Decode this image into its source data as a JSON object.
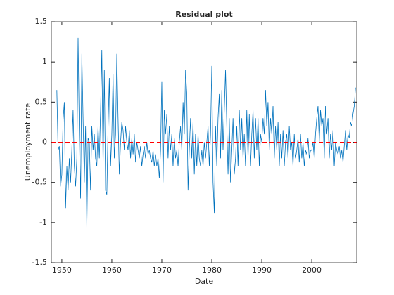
{
  "chart_data": {
    "type": "line",
    "title": "Residual plot",
    "x_label": "Date",
    "y_label": "Unemployment rate",
    "color": "#0072bd",
    "reference_line": {
      "value": 0,
      "color": "#ff0000",
      "style": "dashed"
    },
    "xlim": [
      1947.9,
      2009.0
    ],
    "xticks": [
      1950,
      1960,
      1970,
      1980,
      1990,
      2000
    ],
    "ylim": [
      -1.5,
      1.5
    ],
    "yticks": [
      -1.5,
      -1,
      -0.5,
      0,
      0.5,
      1,
      1.5
    ],
    "x": [
      1949,
      1949.25,
      1949.5,
      1949.75,
      1950,
      1950.25,
      1950.5,
      1950.75,
      1951,
      1951.25,
      1951.5,
      1951.75,
      1952,
      1952.25,
      1952.5,
      1952.75,
      1953,
      1953.25,
      1953.5,
      1953.75,
      1954,
      1954.25,
      1954.5,
      1954.75,
      1955,
      1955.25,
      1955.5,
      1955.75,
      1956,
      1956.25,
      1956.5,
      1956.75,
      1957,
      1957.25,
      1957.5,
      1957.75,
      1958,
      1958.25,
      1958.5,
      1958.75,
      1959,
      1959.25,
      1959.5,
      1959.75,
      1960,
      1960.25,
      1960.5,
      1960.75,
      1961,
      1961.25,
      1961.5,
      1961.75,
      1962,
      1962.25,
      1962.5,
      1962.75,
      1963,
      1963.25,
      1963.5,
      1963.75,
      1964,
      1964.25,
      1964.5,
      1964.75,
      1965,
      1965.25,
      1965.5,
      1965.75,
      1966,
      1966.25,
      1966.5,
      1966.75,
      1967,
      1967.25,
      1967.5,
      1967.75,
      1968,
      1968.25,
      1968.5,
      1968.75,
      1969,
      1969.25,
      1969.5,
      1969.75,
      1970,
      1970.25,
      1970.5,
      1970.75,
      1971,
      1971.25,
      1971.5,
      1971.75,
      1972,
      1972.25,
      1972.5,
      1972.75,
      1973,
      1973.25,
      1973.5,
      1973.75,
      1974,
      1974.25,
      1974.5,
      1974.75,
      1975,
      1975.25,
      1975.5,
      1975.75,
      1976,
      1976.25,
      1976.5,
      1976.75,
      1977,
      1977.25,
      1977.5,
      1977.75,
      1978,
      1978.25,
      1978.5,
      1978.75,
      1979,
      1979.25,
      1979.5,
      1979.75,
      1980,
      1980.25,
      1980.5,
      1980.75,
      1981,
      1981.25,
      1981.5,
      1981.75,
      1982,
      1982.25,
      1982.5,
      1982.75,
      1983,
      1983.25,
      1983.5,
      1983.75,
      1984,
      1984.25,
      1984.5,
      1984.75,
      1985,
      1985.25,
      1985.5,
      1985.75,
      1986,
      1986.25,
      1986.5,
      1986.75,
      1987,
      1987.25,
      1987.5,
      1987.75,
      1988,
      1988.25,
      1988.5,
      1988.75,
      1989,
      1989.25,
      1989.5,
      1989.75,
      1990,
      1990.25,
      1990.5,
      1990.75,
      1991,
      1991.25,
      1991.5,
      1991.75,
      1992,
      1992.25,
      1992.5,
      1992.75,
      1993,
      1993.25,
      1993.5,
      1993.75,
      1994,
      1994.25,
      1994.5,
      1994.75,
      1995,
      1995.25,
      1995.5,
      1995.75,
      1996,
      1996.25,
      1996.5,
      1996.75,
      1997,
      1997.25,
      1997.5,
      1997.75,
      1998,
      1998.25,
      1998.5,
      1998.75,
      1999,
      1999.25,
      1999.5,
      1999.75,
      2000,
      2000.25,
      2000.5,
      2000.75,
      2001,
      2001.25,
      2001.5,
      2001.75,
      2002,
      2002.25,
      2002.5,
      2002.75,
      2003,
      2003.25,
      2003.5,
      2003.75,
      2004,
      2004.25,
      2004.5,
      2004.75,
      2005,
      2005.25,
      2005.5,
      2005.75,
      2006,
      2006.25,
      2006.5,
      2006.75,
      2007,
      2007.25,
      2007.5,
      2007.75,
      2008,
      2008.25,
      2008.5,
      2008.75
    ],
    "values": [
      0.65,
      -0.1,
      -0.05,
      -0.55,
      -0.4,
      0.28,
      0.5,
      -0.82,
      -0.3,
      -0.6,
      -0.2,
      -0.5,
      -0.1,
      0.4,
      -0.3,
      -0.55,
      -0.2,
      1.3,
      0.1,
      -0.7,
      1.1,
      0.3,
      -0.5,
      0.2,
      -1.08,
      0.05,
      0,
      -0.6,
      0.2,
      -0.1,
      0.1,
      -0.2,
      -0.3,
      0.2,
      -0.2,
      0.4,
      1.15,
      -0.3,
      0.9,
      -0.6,
      -0.65,
      0.2,
      0.8,
      -0.3,
      0.1,
      0.85,
      -0.2,
      0.1,
      1.1,
      0.3,
      -0.4,
      0,
      0.25,
      0.15,
      -0.1,
      0.2,
      0,
      -0.1,
      0.15,
      -0.2,
      0.05,
      -0.15,
      0.1,
      -0.25,
      0,
      -0.1,
      -0.2,
      -0.05,
      -0.3,
      -0.15,
      -0.05,
      -0.2,
      0,
      -0.15,
      -0.1,
      -0.2,
      -0.25,
      -0.1,
      -0.3,
      -0.15,
      -0.3,
      -0.2,
      -0.45,
      -0.1,
      0.75,
      -0.5,
      0.4,
      0.1,
      0.35,
      -0.2,
      0.2,
      -0.1,
      0.1,
      -0.3,
      0.05,
      -0.2,
      -0.1,
      -0.3,
      0,
      0.2,
      -0.1,
      0.5,
      0.1,
      0.9,
      0.6,
      -0.6,
      -0.1,
      0.3,
      -0.2,
      0.25,
      -0.4,
      0.1,
      -0.3,
      0.1,
      -0.2,
      -0.3,
      -0.1,
      -0.3,
      0,
      -0.2,
      0,
      0.2,
      -0.3,
      0.1,
      0.95,
      -0.5,
      -0.88,
      0.2,
      -0.3,
      0.3,
      0.6,
      -0.2,
      0.65,
      -0.1,
      0.4,
      0.9,
      0.2,
      -0.4,
      0.3,
      -0.5,
      -0.1,
      0.3,
      -0.4,
      -0.2,
      0.2,
      -0.3,
      0.4,
      -0.1,
      0.3,
      -0.2,
      0.1,
      -0.3,
      0.4,
      -0.2,
      0.35,
      -0.3,
      0.1,
      0.4,
      -0.2,
      0.3,
      -0.1,
      0.3,
      -0.3,
      0.1,
      0,
      0.3,
      0.1,
      0.65,
      0.2,
      0.5,
      -0.1,
      0.3,
      0.1,
      0.45,
      -0.2,
      0.2,
      -0.1,
      0.25,
      -0.3,
      0.1,
      -0.2,
      0.15,
      -0.3,
      0,
      0.1,
      -0.2,
      0.2,
      -0.1,
      0,
      -0.3,
      0.1,
      -0.2,
      -0.1,
      0.05,
      -0.25,
      0.1,
      -0.2,
      0,
      -0.3,
      -0.1,
      -0.15,
      0.05,
      -0.2,
      -0.1,
      -0.1,
      0,
      -0.2,
      0.1,
      0.3,
      0.45,
      0,
      0.4,
      0.2,
      0.3,
      -0.2,
      0.45,
      0.1,
      0.3,
      -0.2,
      0.1,
      -0.1,
      0.15,
      -0.3,
      0,
      -0.1,
      -0.15,
      -0.05,
      -0.2,
      -0.1,
      -0.25,
      -0.05,
      0.15,
      -0.1,
      0.1,
      0.05,
      0.25,
      0.2,
      0.35,
      0.45,
      0.68
    ]
  }
}
